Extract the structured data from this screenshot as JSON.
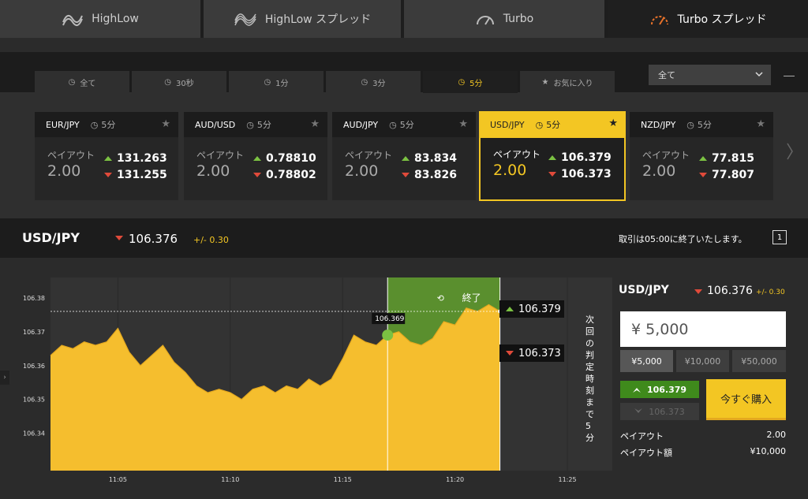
{
  "top_tabs": [
    {
      "label": "HighLow",
      "icon": "highlow-icon"
    },
    {
      "label": "HighLow スプレッド",
      "icon": "highlow-spread-icon"
    },
    {
      "label": "Turbo",
      "icon": "turbo-gauge-icon"
    },
    {
      "label": "Turbo スプレッド",
      "icon": "turbo-spread-gauge-icon",
      "active": true
    }
  ],
  "period_tabs": [
    {
      "label": "全て"
    },
    {
      "label": "30秒"
    },
    {
      "label": "1分"
    },
    {
      "label": "3分"
    },
    {
      "label": "5分",
      "active": true
    },
    {
      "label": "お気に入り"
    }
  ],
  "filter": {
    "value": "全て"
  },
  "cards": [
    {
      "pair": "EUR/JPY",
      "duration": "5分",
      "payout_label": "ペイアウト",
      "payout": "2.00",
      "high": "131.263",
      "low": "131.255"
    },
    {
      "pair": "AUD/USD",
      "duration": "5分",
      "payout_label": "ペイアウト",
      "payout": "2.00",
      "high": "0.78810",
      "low": "0.78802"
    },
    {
      "pair": "AUD/JPY",
      "duration": "5分",
      "payout_label": "ペイアウト",
      "payout": "2.00",
      "high": "83.834",
      "low": "83.826"
    },
    {
      "pair": "USD/JPY",
      "duration": "5分",
      "payout_label": "ペイアウト",
      "payout": "2.00",
      "high": "106.379",
      "low": "106.373",
      "active": true
    },
    {
      "pair": "NZD/JPY",
      "duration": "5分",
      "payout_label": "ペイアウト",
      "payout": "2.00",
      "high": "77.815",
      "low": "77.807"
    }
  ],
  "info_bar": {
    "pair": "USD/JPY",
    "rate": "106.376",
    "change": "+/- 0.30",
    "notice": "取引は05:00に終了いたします。",
    "view_toggle": "1"
  },
  "chart": {
    "end_label": "終了",
    "current_label": "106.369",
    "high_label": "106.379",
    "low_label": "106.373",
    "vertical_text": "次回の判定時刻まで5分",
    "y_ticks": [
      "106.38",
      "106.37",
      "106.36",
      "106.35",
      "106.34"
    ],
    "x_ticks": [
      "11:05",
      "11:10",
      "11:15",
      "11:20",
      "11:25"
    ]
  },
  "chart_data": {
    "type": "area",
    "x_range": [
      "11:02",
      "11:27"
    ],
    "ylim": [
      106.329,
      106.386
    ],
    "strike_time": "11:17",
    "expiry_time": "11:22",
    "current_rate": 106.376,
    "series": [
      {
        "points": [
          [
            "11:02",
            106.363
          ],
          [
            "11:02:30",
            106.366
          ],
          [
            "11:03",
            106.365
          ],
          [
            "11:03:30",
            106.367
          ],
          [
            "11:04",
            106.366
          ],
          [
            "11:04:30",
            106.367
          ],
          [
            "11:05",
            106.371
          ],
          [
            "11:05:30",
            106.364
          ],
          [
            "11:06",
            106.36
          ],
          [
            "11:06:30",
            106.363
          ],
          [
            "11:07",
            106.366
          ],
          [
            "11:07:30",
            106.361
          ],
          [
            "11:08",
            106.358
          ],
          [
            "11:08:30",
            106.354
          ],
          [
            "11:09",
            106.352
          ],
          [
            "11:09:30",
            106.353
          ],
          [
            "11:10",
            106.352
          ],
          [
            "11:10:30",
            106.35
          ],
          [
            "11:11",
            106.353
          ],
          [
            "11:11:30",
            106.354
          ],
          [
            "11:12",
            106.352
          ],
          [
            "11:12:30",
            106.354
          ],
          [
            "11:13",
            106.353
          ],
          [
            "11:13:30",
            106.356
          ],
          [
            "11:14",
            106.354
          ],
          [
            "11:14:30",
            106.356
          ],
          [
            "11:15",
            106.362
          ],
          [
            "11:15:30",
            106.369
          ],
          [
            "11:16",
            106.367
          ],
          [
            "11:16:30",
            106.366
          ],
          [
            "11:17",
            106.369
          ],
          [
            "11:17:30",
            106.37
          ],
          [
            "11:18",
            106.367
          ],
          [
            "11:18:30",
            106.366
          ],
          [
            "11:19",
            106.368
          ],
          [
            "11:19:30",
            106.373
          ],
          [
            "11:20",
            106.372
          ],
          [
            "11:20:30",
            106.377
          ],
          [
            "11:21",
            106.376
          ],
          [
            "11:21:30",
            106.378
          ],
          [
            "11:22",
            106.376
          ]
        ]
      }
    ]
  },
  "order": {
    "pair": "USD/JPY",
    "rate": "106.376",
    "change": "+/- 0.30",
    "amount": "¥ 5,000",
    "presets": [
      "¥5,000",
      "¥10,000",
      "¥50,000"
    ],
    "high_btn": "106.379",
    "low_btn": "106.373",
    "buy": "今すぐ購入",
    "payout_label": "ペイアウト",
    "payout": "2.00",
    "payout_amount_label": "ペイアウト額",
    "payout_amount": "¥10,000"
  },
  "colors": {
    "accent": "#f3c623",
    "up": "#7bc142",
    "down": "#e04a3a",
    "green_panel": "#5a8f2e"
  }
}
